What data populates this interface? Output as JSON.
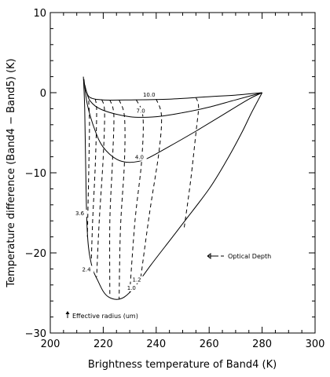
{
  "chart_data": {
    "type": "line",
    "xlabel": "Brightness temperature of Band4 (K)",
    "ylabel": "Temperature difference (Band4 − Band5) (K)",
    "xlim": [
      200,
      300
    ],
    "ylim": [
      -30,
      10
    ],
    "xticks": [
      200,
      220,
      240,
      260,
      280,
      300
    ],
    "yticks": [
      -30,
      -20,
      -10,
      0,
      10
    ],
    "grid": false,
    "effective_radius_curves": [
      {
        "label": "10.0",
        "points": [
          [
            213.5,
            0.3
          ],
          [
            215,
            -0.6
          ],
          [
            220,
            -0.9
          ],
          [
            230,
            -0.9
          ],
          [
            245,
            -0.8
          ],
          [
            260,
            -0.5
          ],
          [
            270,
            -0.3
          ],
          [
            280,
            0
          ]
        ]
      },
      {
        "label": "7.0",
        "points": [
          [
            213,
            1.0
          ],
          [
            215,
            -1.0
          ],
          [
            220,
            -2.2
          ],
          [
            230,
            -3.0
          ],
          [
            240,
            -3.0
          ],
          [
            250,
            -2.5
          ],
          [
            260,
            -1.8
          ],
          [
            270,
            -0.9
          ],
          [
            280,
            0
          ]
        ]
      },
      {
        "label": "4.0",
        "points": [
          [
            212.7,
            1.7
          ],
          [
            214,
            -1.5
          ],
          [
            217,
            -4.8
          ],
          [
            220,
            -6.8
          ],
          [
            225,
            -8.3
          ],
          [
            230,
            -8.7
          ],
          [
            236,
            -8.3
          ],
          [
            245,
            -6.7
          ],
          [
            255,
            -4.8
          ],
          [
            265,
            -2.8
          ],
          [
            275,
            -0.8
          ],
          [
            280,
            0
          ]
        ]
      },
      {
        "label": "1.0",
        "points": [
          [
            212.5,
            2.0
          ],
          [
            213,
            -2.0
          ],
          [
            213.4,
            -10.0
          ],
          [
            213.8,
            -16.0
          ],
          [
            214.5,
            -19.5
          ],
          [
            216,
            -22.0
          ],
          [
            218,
            -23.5
          ],
          [
            220,
            -24.8
          ],
          [
            222,
            -25.5
          ],
          [
            225,
            -25.8
          ],
          [
            228,
            -25.5
          ],
          [
            232,
            -24.2
          ],
          [
            238,
            -21.5
          ],
          [
            245,
            -18.5
          ],
          [
            252,
            -15.5
          ],
          [
            260,
            -12.0
          ],
          [
            266,
            -8.8
          ],
          [
            272,
            -5.2
          ],
          [
            276,
            -2.5
          ],
          [
            280,
            0
          ]
        ]
      }
    ],
    "optical_depth_lines": [
      [
        [
          214.5,
          -1.0
        ],
        [
          214.8,
          -4.0
        ],
        [
          214.5,
          -10.0
        ],
        [
          214.0,
          -18.0
        ]
      ],
      [
        [
          217.0,
          -0.8
        ],
        [
          217.5,
          -2.5
        ],
        [
          217.0,
          -9.0
        ],
        [
          216.0,
          -16.0
        ],
        [
          215.5,
          -21.0
        ]
      ],
      [
        [
          219.5,
          -0.9
        ],
        [
          220.5,
          -2.4
        ],
        [
          220.0,
          -8.0
        ],
        [
          218.5,
          -16.0
        ],
        [
          217.5,
          -23.0
        ]
      ],
      [
        [
          222.5,
          -0.9
        ],
        [
          224.0,
          -2.8
        ],
        [
          223.5,
          -8.5
        ],
        [
          222.5,
          -16.0
        ],
        [
          222.5,
          -25.5
        ]
      ],
      [
        [
          226.0,
          -0.9
        ],
        [
          228.0,
          -3.0
        ],
        [
          228.0,
          -8.7
        ],
        [
          226.5,
          -17.0
        ],
        [
          226.0,
          -25.8
        ]
      ],
      [
        [
          232.5,
          -0.9
        ],
        [
          235.0,
          -3.0
        ],
        [
          234.5,
          -8.5
        ],
        [
          232.0,
          -16.0
        ],
        [
          230.0,
          -25.0
        ]
      ],
      [
        [
          240.0,
          -0.8
        ],
        [
          242.0,
          -2.9
        ],
        [
          241.0,
          -7.5
        ],
        [
          237.5,
          -15.0
        ],
        [
          234.0,
          -23.5
        ]
      ],
      [
        [
          255.0,
          -0.6
        ],
        [
          256.0,
          -1.8
        ],
        [
          255.0,
          -5.0
        ],
        [
          253.0,
          -11.0
        ],
        [
          250.5,
          -17.0
        ]
      ]
    ],
    "curve_labels": [
      {
        "text": "10.0",
        "x": 235,
        "y": -0.5
      },
      {
        "text": "7.0",
        "x": 232.5,
        "y": -2.5
      },
      {
        "text": "4.0",
        "x": 232,
        "y": -8.3
      },
      {
        "text": "3.6",
        "x": 209.5,
        "y": -15.3
      },
      {
        "text": "2.4",
        "x": 212,
        "y": -22.3
      },
      {
        "text": "1.2",
        "x": 231,
        "y": -23.6
      },
      {
        "text": "1.0",
        "x": 229,
        "y": -24.6
      }
    ],
    "annotations": {
      "optical_depth": "Optical Depth",
      "effective_radius": "Effective radius (um)"
    }
  }
}
